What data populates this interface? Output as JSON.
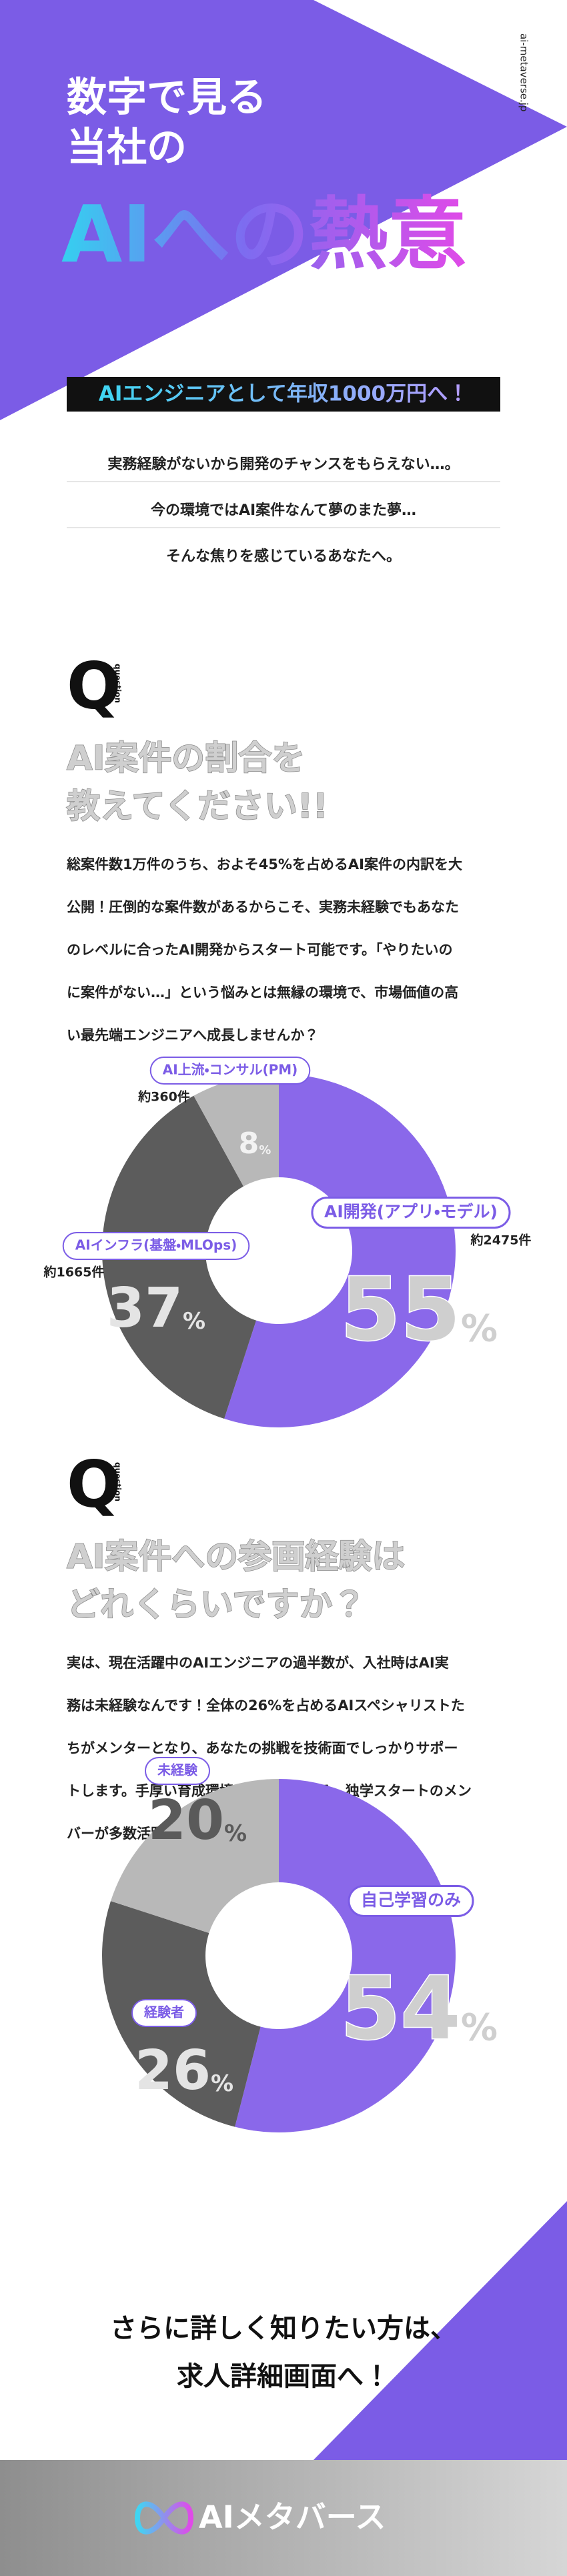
{
  "header": {
    "url": "ai-metaverse.jp",
    "title_lines": [
      "数字で見る",
      "当社の"
    ],
    "headline": "AIへの熱意",
    "banner": "AIエンジニアとして年収1000万円へ！"
  },
  "intro": [
    "実務経験がないから開発のチャンスをもらえない…。",
    "今の環境ではAI案件なんて夢のまた夢…",
    "そんな焦りを感じているあなたへ。"
  ],
  "sections": [
    {
      "q": "Q",
      "q_sub": "question",
      "heading": [
        "AI案件の割合を",
        "教えてください!!"
      ],
      "body": [
        "総案件数1万件のうち、およそ45%を占めるAI案件の内訳を大",
        "公開！圧倒的な案件数があるからこそ、実務未経験でもあなた",
        "のレベルに合ったAI開発からスタート可能です。「やりたいの",
        "に案件がない…」という悩みとは無縁の環境で、市場価値の高",
        "い最先端エンジニアへ成長しませんか？"
      ]
    },
    {
      "q": "Q",
      "q_sub": "question",
      "heading": [
        "AI案件への参画経験は",
        "どれくらいですか？"
      ],
      "body": [
        "実は、現在活躍中のAIエンジニアの過半数が、入社時はAI実",
        "務は未経験なんです！全体の26%を占めるAIスペシャリストた",
        "ちがメンターとなり、あなたの挑戦を技術面でしっかりサポー",
        "トします。手厚い育成環境があるからこそ、独学スタートのメン",
        "バーが多数活躍しています！"
      ]
    }
  ],
  "chart_data": [
    {
      "type": "pie",
      "donut": true,
      "categories": [
        "AI開発(アプリ・モデル)",
        "AIインフラ(基盤・MLOps)",
        "AI上流・コンサル(PM)"
      ],
      "values": [
        55,
        37,
        8
      ],
      "value_labels": [
        "55%",
        "37%",
        "8%"
      ],
      "notes": [
        "約2475件",
        "約1665件",
        "約360件"
      ],
      "colors": [
        "#8a68ea",
        "#5c5c5c",
        "#b8b8b8"
      ]
    },
    {
      "type": "pie",
      "donut": true,
      "categories": [
        "自己学習のみ",
        "経験者",
        "未経験"
      ],
      "values": [
        54,
        26,
        20
      ],
      "value_labels": [
        "54%",
        "26%",
        "20%"
      ],
      "colors": [
        "#8a68ea",
        "#5c5c5c",
        "#b8b8b8"
      ]
    }
  ],
  "closing": [
    "さらに詳しく知りたい方は、",
    "求人詳細画面へ！"
  ],
  "footer": {
    "logo": "AIメタバース"
  }
}
